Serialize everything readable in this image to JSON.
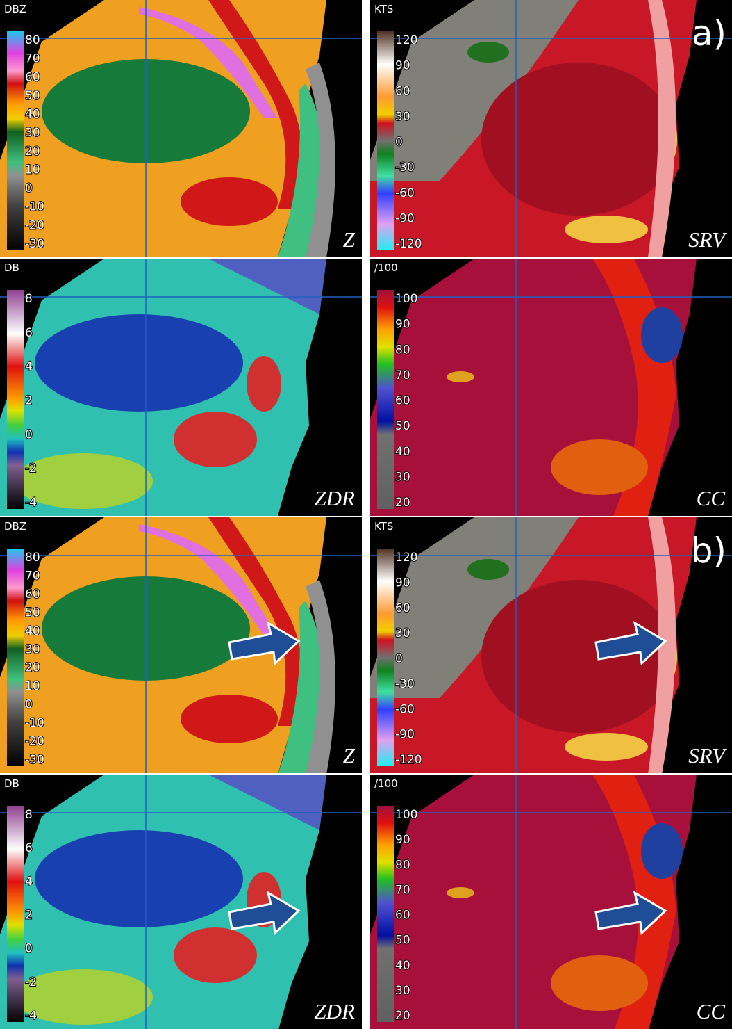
{
  "panels": [
    {
      "unit": "DBZ",
      "ticks": [
        "80",
        "70",
        "60",
        "50",
        "40",
        "30",
        "20",
        "10",
        "0",
        "-10",
        "-20",
        "-30"
      ],
      "product": "Z"
    },
    {
      "unit": "KTS",
      "ticks": [
        "120",
        "90",
        "60",
        "30",
        "0",
        "-30",
        "-60",
        "-90",
        "-120"
      ],
      "product": "SRV",
      "tag": "a)"
    },
    {
      "unit": "DB",
      "ticks": [
        "8",
        "6",
        "4",
        "2",
        "0",
        "-2",
        "-4"
      ],
      "product": "ZDR"
    },
    {
      "unit": "/100",
      "ticks": [
        "100",
        "90",
        "80",
        "70",
        "60",
        "50",
        "40",
        "30",
        "20"
      ],
      "product": "CC"
    },
    {
      "unit": "DBZ",
      "ticks": [
        "80",
        "70",
        "60",
        "50",
        "40",
        "30",
        "20",
        "10",
        "0",
        "-10",
        "-20",
        "-30"
      ],
      "product": "Z"
    },
    {
      "unit": "KTS",
      "ticks": [
        "120",
        "90",
        "60",
        "30",
        "0",
        "-30",
        "-60",
        "-90",
        "-120"
      ],
      "product": "SRV",
      "tag": "b)"
    },
    {
      "unit": "DB",
      "ticks": [
        "8",
        "6",
        "4",
        "2",
        "0",
        "-2",
        "-4"
      ],
      "product": "ZDR"
    },
    {
      "unit": "/100",
      "ticks": [
        "100",
        "90",
        "80",
        "70",
        "60",
        "50",
        "40",
        "30",
        "20"
      ],
      "product": "CC"
    }
  ]
}
